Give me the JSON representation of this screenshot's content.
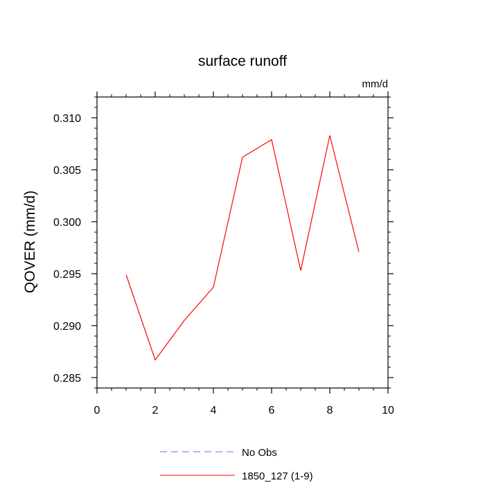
{
  "chart_data": {
    "type": "line",
    "title": "surface runoff",
    "units_label": "mm/d",
    "ylabel": "QOVER  (mm/d)",
    "xlabel": "",
    "xlim": [
      0,
      10
    ],
    "ylim": [
      0.284,
      0.312
    ],
    "x_ticks": [
      0,
      2,
      4,
      6,
      8,
      10
    ],
    "x_tick_labels": [
      "0",
      "2",
      "4",
      "6",
      "8",
      "10"
    ],
    "y_ticks": [
      0.285,
      0.29,
      0.295,
      0.3,
      0.305,
      0.31
    ],
    "y_tick_labels": [
      "0.285",
      "0.290",
      "0.295",
      "0.300",
      "0.305",
      "0.310"
    ],
    "grid": false,
    "legend_position": "bottom",
    "series": [
      {
        "name": "1850_127 (1-9)",
        "color": "#ff0000",
        "dash": "solid",
        "x": [
          1,
          2,
          3,
          4,
          5,
          6,
          7,
          8,
          9
        ],
        "y": [
          0.2949,
          0.2867,
          0.2905,
          0.2937,
          0.3062,
          0.3079,
          0.2953,
          0.3083,
          0.2971
        ]
      }
    ],
    "legend": [
      {
        "label": "No Obs",
        "color": "#6a6af0",
        "dash": "dashed"
      },
      {
        "label": "1850_127 (1-9)",
        "color": "#ff0000",
        "dash": "solid"
      }
    ]
  }
}
